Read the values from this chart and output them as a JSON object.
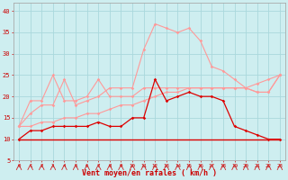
{
  "x": [
    0,
    1,
    2,
    3,
    4,
    5,
    6,
    7,
    8,
    9,
    10,
    11,
    12,
    13,
    14,
    15,
    16,
    17,
    18,
    19,
    20,
    21,
    22,
    23
  ],
  "line_flat_dark": [
    10,
    10,
    10,
    10,
    10,
    10,
    10,
    10,
    10,
    10,
    10,
    10,
    10,
    10,
    10,
    10,
    10,
    10,
    10,
    10,
    10,
    10,
    10,
    10
  ],
  "line_spiky_dark": [
    10,
    12,
    12,
    13,
    13,
    13,
    13,
    14,
    13,
    13,
    15,
    15,
    24,
    19,
    20,
    21,
    20,
    20,
    19,
    13,
    12,
    11,
    10,
    10
  ],
  "line_rising_pink": [
    13,
    13,
    14,
    14,
    15,
    15,
    16,
    16,
    17,
    18,
    18,
    19,
    20,
    21,
    21,
    22,
    22,
    22,
    22,
    22,
    22,
    23,
    24,
    25
  ],
  "line_peak_pink": [
    13,
    16,
    18,
    18,
    24,
    18,
    19,
    20,
    22,
    22,
    22,
    31,
    37,
    36,
    35,
    36,
    33,
    27,
    26,
    24,
    22,
    21,
    21,
    25
  ],
  "line_mid_pink": [
    13,
    19,
    19,
    25,
    19,
    19,
    20,
    24,
    20,
    20,
    20,
    22,
    22,
    22,
    22,
    22,
    22,
    22,
    22,
    22,
    22,
    21,
    21,
    25
  ],
  "xlabel": "Vent moyen/en rafales ( km/h )",
  "bg_color": "#ceeef0",
  "grid_color": "#aad8dc",
  "color_dark_red": "#dd0000",
  "color_pink": "#ff9999",
  "ylim": [
    5,
    42
  ],
  "yticks": [
    5,
    10,
    15,
    20,
    25,
    30,
    35,
    40
  ],
  "xlim": [
    -0.5,
    23.5
  ]
}
